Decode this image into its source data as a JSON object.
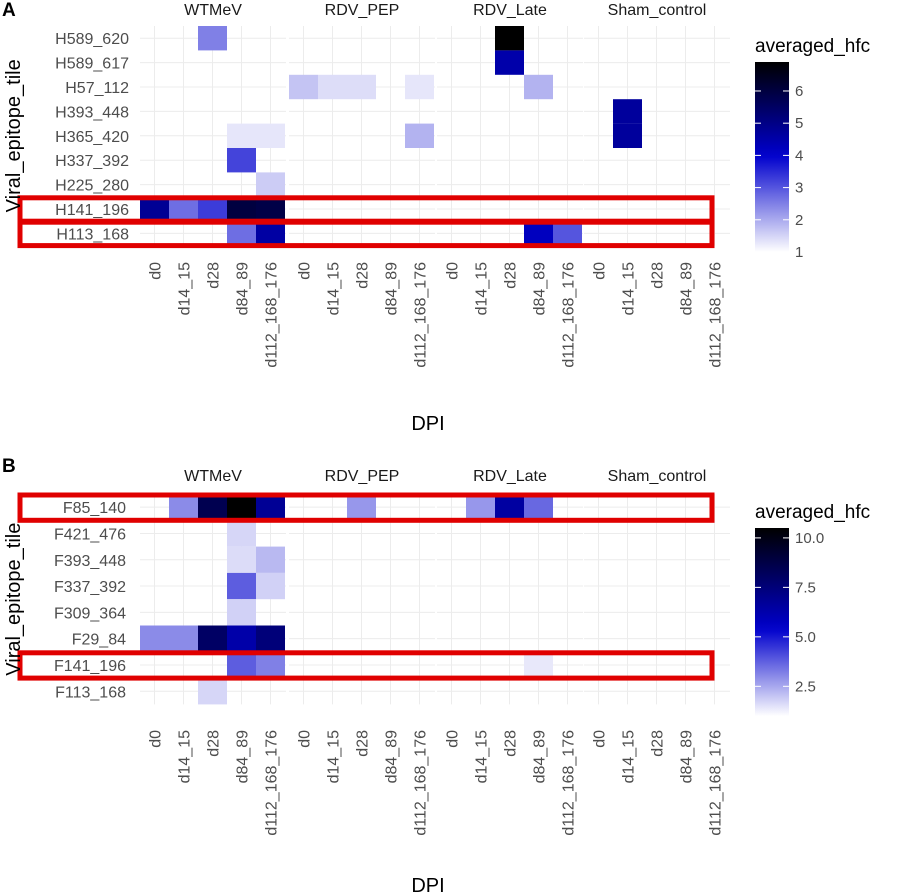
{
  "panels": [
    {
      "letter": "A"
    },
    {
      "letter": "B"
    }
  ],
  "chart_data": [
    {
      "type": "heatmap",
      "panel": "A",
      "facets": [
        "WTMeV",
        "RDV_PEP",
        "RDV_Late",
        "Sham_control"
      ],
      "x_categories": [
        "d0",
        "d14_15",
        "d28",
        "d84_89",
        "d112_168_176"
      ],
      "y_categories": [
        "H589_620",
        "H589_617",
        "H57_112",
        "H393_448",
        "H365_420",
        "H337_392",
        "H225_280",
        "H141_196",
        "H113_168"
      ],
      "xlabel": "DPI",
      "ylabel": "Viral_epitope_tile",
      "legend": {
        "title": "averaged_hfc",
        "min": 1,
        "max": 6.9,
        "ticks": [
          1,
          2,
          3,
          4,
          5,
          6
        ],
        "low_color": "#ffffff",
        "mid_color": "#0000cd",
        "high_color": "#000000",
        "mid_value": 4
      },
      "highlighted_rows": [
        "H141_196",
        "H113_168"
      ],
      "highlight_color": "#e00000",
      "cells": [
        {
          "facet": "WTMeV",
          "y": "H589_620",
          "x": "d28",
          "value": 2.5
        },
        {
          "facet": "WTMeV",
          "y": "H365_420",
          "x": "d84_89",
          "value": 1.3
        },
        {
          "facet": "WTMeV",
          "y": "H365_420",
          "x": "d112_168_176",
          "value": 1.3
        },
        {
          "facet": "WTMeV",
          "y": "H337_392",
          "x": "d84_89",
          "value": 3.2
        },
        {
          "facet": "WTMeV",
          "y": "H225_280",
          "x": "d112_168_176",
          "value": 1.6
        },
        {
          "facet": "WTMeV",
          "y": "H141_196",
          "x": "d0",
          "value": 4.8
        },
        {
          "facet": "WTMeV",
          "y": "H141_196",
          "x": "d14_15",
          "value": 2.7
        },
        {
          "facet": "WTMeV",
          "y": "H141_196",
          "x": "d28",
          "value": 3.3
        },
        {
          "facet": "WTMeV",
          "y": "H141_196",
          "x": "d84_89",
          "value": 6.0
        },
        {
          "facet": "WTMeV",
          "y": "H141_196",
          "x": "d112_168_176",
          "value": 5.9
        },
        {
          "facet": "WTMeV",
          "y": "H113_168",
          "x": "d84_89",
          "value": 2.7
        },
        {
          "facet": "WTMeV",
          "y": "H113_168",
          "x": "d112_168_176",
          "value": 4.6
        },
        {
          "facet": "RDV_PEP",
          "y": "H57_112",
          "x": "d0",
          "value": 1.7
        },
        {
          "facet": "RDV_PEP",
          "y": "H57_112",
          "x": "d14_15",
          "value": 1.4
        },
        {
          "facet": "RDV_PEP",
          "y": "H57_112",
          "x": "d28",
          "value": 1.4
        },
        {
          "facet": "RDV_PEP",
          "y": "H57_112",
          "x": "d112_168_176",
          "value": 1.3
        },
        {
          "facet": "RDV_PEP",
          "y": "H365_420",
          "x": "d112_168_176",
          "value": 1.9
        },
        {
          "facet": "RDV_Late",
          "y": "H589_620",
          "x": "d28",
          "value": 6.9
        },
        {
          "facet": "RDV_Late",
          "y": "H589_617",
          "x": "d28",
          "value": 4.5
        },
        {
          "facet": "RDV_Late",
          "y": "H57_112",
          "x": "d84_89",
          "value": 1.9
        },
        {
          "facet": "RDV_Late",
          "y": "H113_168",
          "x": "d84_89",
          "value": 4.2
        },
        {
          "facet": "RDV_Late",
          "y": "H113_168",
          "x": "d112_168_176",
          "value": 3.0
        },
        {
          "facet": "Sham_control",
          "y": "H393_448",
          "x": "d14_15",
          "value": 4.7
        },
        {
          "facet": "Sham_control",
          "y": "H365_420",
          "x": "d14_15",
          "value": 4.7
        }
      ]
    },
    {
      "type": "heatmap",
      "panel": "B",
      "facets": [
        "WTMeV",
        "RDV_PEP",
        "RDV_Late",
        "Sham_control"
      ],
      "x_categories": [
        "d0",
        "d14_15",
        "d28",
        "d84_89",
        "d112_168_176"
      ],
      "y_categories": [
        "F85_140",
        "F421_476",
        "F393_448",
        "F337_392",
        "F309_364",
        "F29_84",
        "F141_196",
        "F113_168"
      ],
      "xlabel": "DPI",
      "ylabel": "Viral_epitope_tile",
      "legend": {
        "title": "averaged_hfc",
        "min": 1,
        "max": 10.5,
        "ticks": [
          2.5,
          5.0,
          7.5,
          10.0
        ],
        "low_color": "#ffffff",
        "mid_color": "#0000cd",
        "high_color": "#000000",
        "mid_value": 5.4
      },
      "highlighted_rows": [
        "F85_140",
        "F141_196"
      ],
      "highlight_color": "#e00000",
      "cells": [
        {
          "facet": "WTMeV",
          "y": "F85_140",
          "x": "d14_15",
          "value": 3.0
        },
        {
          "facet": "WTMeV",
          "y": "F85_140",
          "x": "d28",
          "value": 8.5
        },
        {
          "facet": "WTMeV",
          "y": "F85_140",
          "x": "d84_89",
          "value": 10.5
        },
        {
          "facet": "WTMeV",
          "y": "F85_140",
          "x": "d112_168_176",
          "value": 6.8
        },
        {
          "facet": "WTMeV",
          "y": "F421_476",
          "x": "d84_89",
          "value": 1.7
        },
        {
          "facet": "WTMeV",
          "y": "F393_448",
          "x": "d84_89",
          "value": 1.6
        },
        {
          "facet": "WTMeV",
          "y": "F393_448",
          "x": "d112_168_176",
          "value": 2.2
        },
        {
          "facet": "WTMeV",
          "y": "F337_392",
          "x": "d84_89",
          "value": 3.8
        },
        {
          "facet": "WTMeV",
          "y": "F337_392",
          "x": "d112_168_176",
          "value": 1.8
        },
        {
          "facet": "WTMeV",
          "y": "F309_364",
          "x": "d84_89",
          "value": 1.8
        },
        {
          "facet": "WTMeV",
          "y": "F29_84",
          "x": "d0",
          "value": 3.0
        },
        {
          "facet": "WTMeV",
          "y": "F29_84",
          "x": "d14_15",
          "value": 3.0
        },
        {
          "facet": "WTMeV",
          "y": "F29_84",
          "x": "d28",
          "value": 8.0
        },
        {
          "facet": "WTMeV",
          "y": "F29_84",
          "x": "d84_89",
          "value": 6.3
        },
        {
          "facet": "WTMeV",
          "y": "F29_84",
          "x": "d112_168_176",
          "value": 7.5
        },
        {
          "facet": "WTMeV",
          "y": "F141_196",
          "x": "d84_89",
          "value": 3.8
        },
        {
          "facet": "WTMeV",
          "y": "F141_196",
          "x": "d112_168_176",
          "value": 3.2
        },
        {
          "facet": "WTMeV",
          "y": "F113_168",
          "x": "d28",
          "value": 1.7
        },
        {
          "facet": "RDV_PEP",
          "y": "F85_140",
          "x": "d28",
          "value": 2.8
        },
        {
          "facet": "RDV_Late",
          "y": "F85_140",
          "x": "d14_15",
          "value": 2.8
        },
        {
          "facet": "RDV_Late",
          "y": "F85_140",
          "x": "d28",
          "value": 6.5
        },
        {
          "facet": "RDV_Late",
          "y": "F85_140",
          "x": "d84_89",
          "value": 3.6
        },
        {
          "facet": "RDV_Late",
          "y": "F141_196",
          "x": "d84_89",
          "value": 1.4
        }
      ]
    }
  ]
}
